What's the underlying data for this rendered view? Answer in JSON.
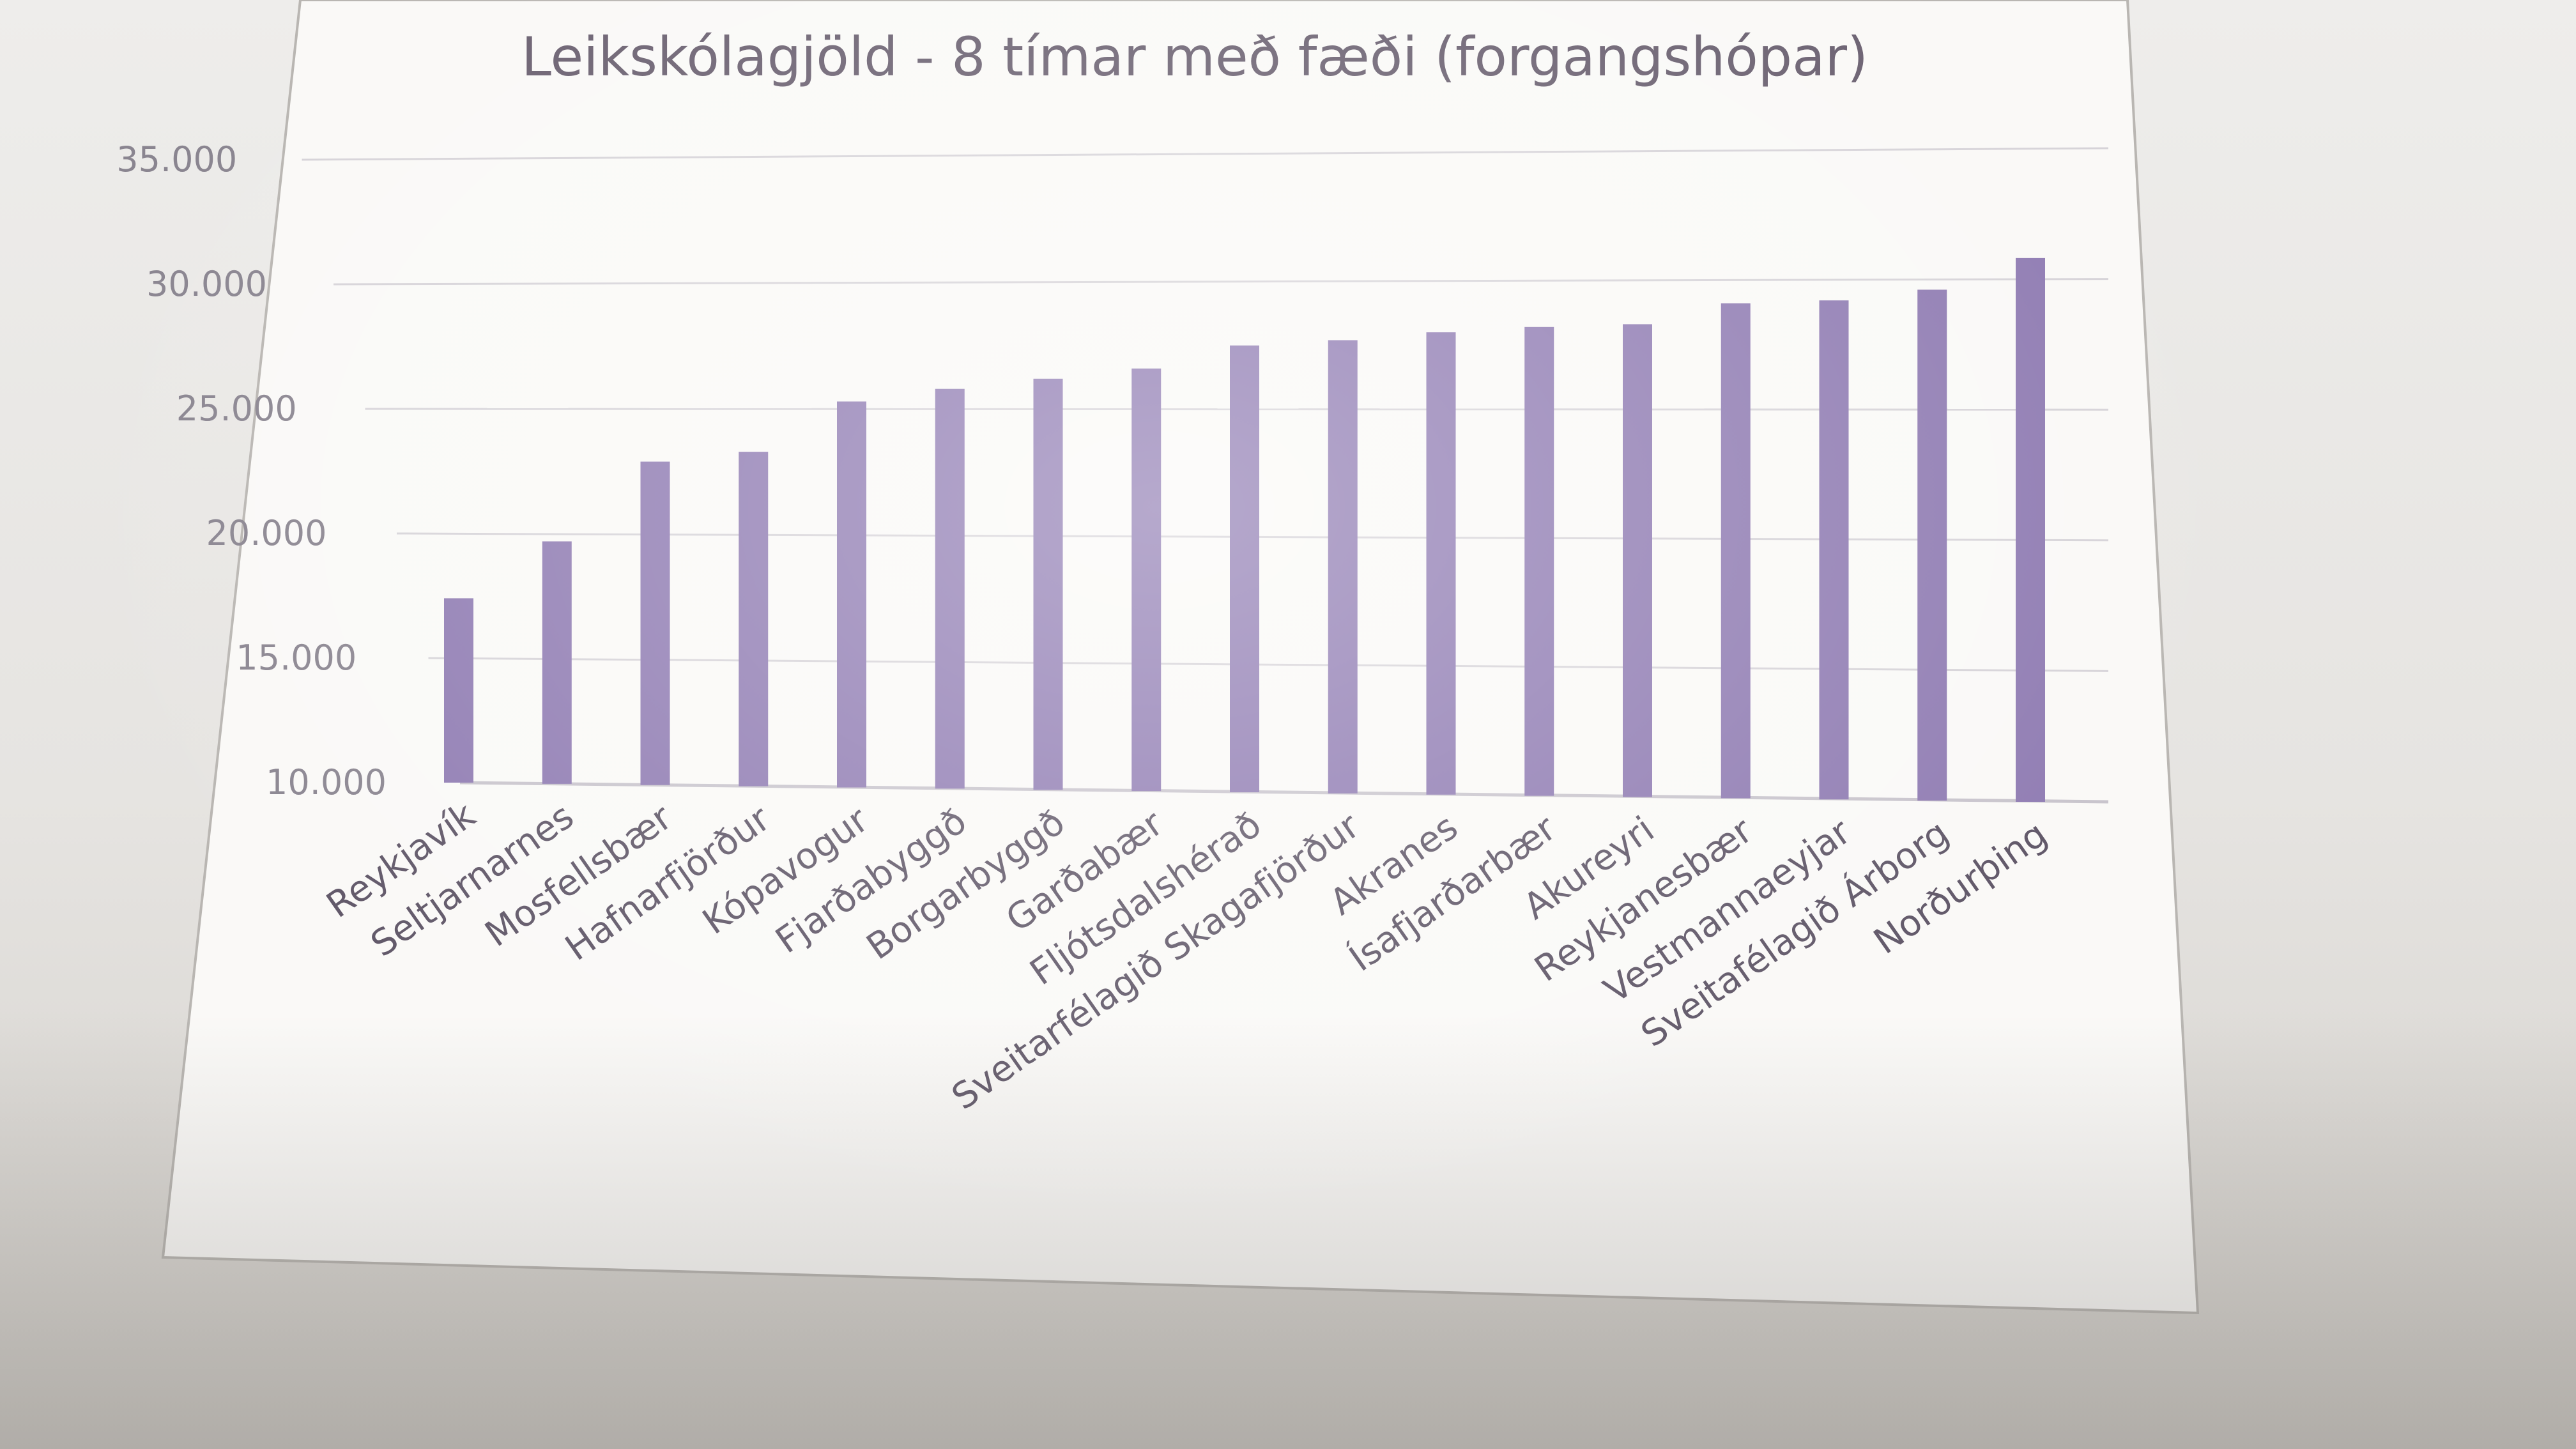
{
  "chart_data": {
    "type": "bar",
    "title": "Leikskólagjöld - 8 tímar með fæði (forgangshópar)",
    "xlabel": "",
    "ylabel": "",
    "ylim": [
      10000,
      35000
    ],
    "yticks": [
      "10.000",
      "15.000",
      "20.000",
      "25.000",
      "30.000",
      "35.000"
    ],
    "ytick_values": [
      10000,
      15000,
      20000,
      25000,
      30000,
      35000
    ],
    "grid": true,
    "legend": "none",
    "bar_color": "#8f7bb2",
    "categories": [
      "Reykjavík",
      "Seltjarnarnes",
      "Mosfellsbær",
      "Hafnarfjörður",
      "Kópavogur",
      "Fjarðabyggð",
      "Borgarbyggð",
      "Garðabær",
      "Fljótsdalshérað",
      "Sveitarfélagið Skagafjörður",
      "Akranes",
      "Ísafjarðarbær",
      "Akureyri",
      "Reykjanesbær",
      "Vestmannaeyjar",
      "Sveitafélagið Árborg",
      "Norðurþing"
    ],
    "values": [
      17400,
      19700,
      22900,
      23300,
      25300,
      25800,
      26200,
      26600,
      27500,
      27700,
      28000,
      28200,
      28300,
      29100,
      29200,
      29600,
      30800
    ]
  }
}
